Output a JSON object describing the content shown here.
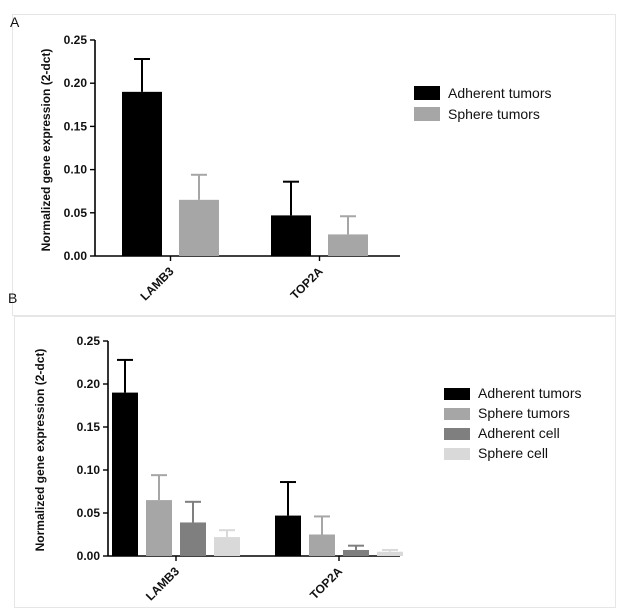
{
  "panels": [
    {
      "letter": "A"
    },
    {
      "letter": "B"
    }
  ],
  "chart_data": [
    {
      "type": "bar",
      "panel": "A",
      "title": "",
      "ylabel": "Normalized gene expression (2-dct)",
      "xlabel": "",
      "ylim": [
        0,
        0.25
      ],
      "yticks": [
        0.0,
        0.05,
        0.1,
        0.15,
        0.2,
        0.25
      ],
      "ytick_labels": [
        "0.00",
        "0.05",
        "0.10",
        "0.15",
        "0.20",
        "0.25"
      ],
      "categories": [
        "LAMB3",
        "TOP2A"
      ],
      "series": [
        {
          "name": "Adherent tumors",
          "color": "#000000",
          "values": [
            0.19,
            0.047
          ],
          "errors": [
            0.038,
            0.039
          ]
        },
        {
          "name": "Sphere tumors",
          "color": "#a6a6a6",
          "values": [
            0.065,
            0.025
          ],
          "errors": [
            0.029,
            0.021
          ]
        }
      ],
      "legend_position": "right"
    },
    {
      "type": "bar",
      "panel": "B",
      "title": "",
      "ylabel": "Normalized gene expression (2-dct)",
      "xlabel": "",
      "ylim": [
        0,
        0.25
      ],
      "yticks": [
        0.0,
        0.05,
        0.1,
        0.15,
        0.2,
        0.25
      ],
      "ytick_labels": [
        "0.00",
        "0.05",
        "0.10",
        "0.15",
        "0.20",
        "0.25"
      ],
      "categories": [
        "LAMB3",
        "TOP2A"
      ],
      "series": [
        {
          "name": "Adherent tumors",
          "color": "#000000",
          "values": [
            0.19,
            0.047
          ],
          "errors": [
            0.038,
            0.039
          ]
        },
        {
          "name": "Sphere tumors",
          "color": "#a6a6a6",
          "values": [
            0.065,
            0.025
          ],
          "errors": [
            0.029,
            0.021
          ]
        },
        {
          "name": "Adherent cell",
          "color": "#7f7f7f",
          "values": [
            0.039,
            0.007
          ],
          "errors": [
            0.024,
            0.005
          ]
        },
        {
          "name": "Sphere cell",
          "color": "#d9d9d9",
          "values": [
            0.022,
            0.005
          ],
          "errors": [
            0.008,
            0.002
          ]
        }
      ],
      "legend_position": "right"
    }
  ]
}
